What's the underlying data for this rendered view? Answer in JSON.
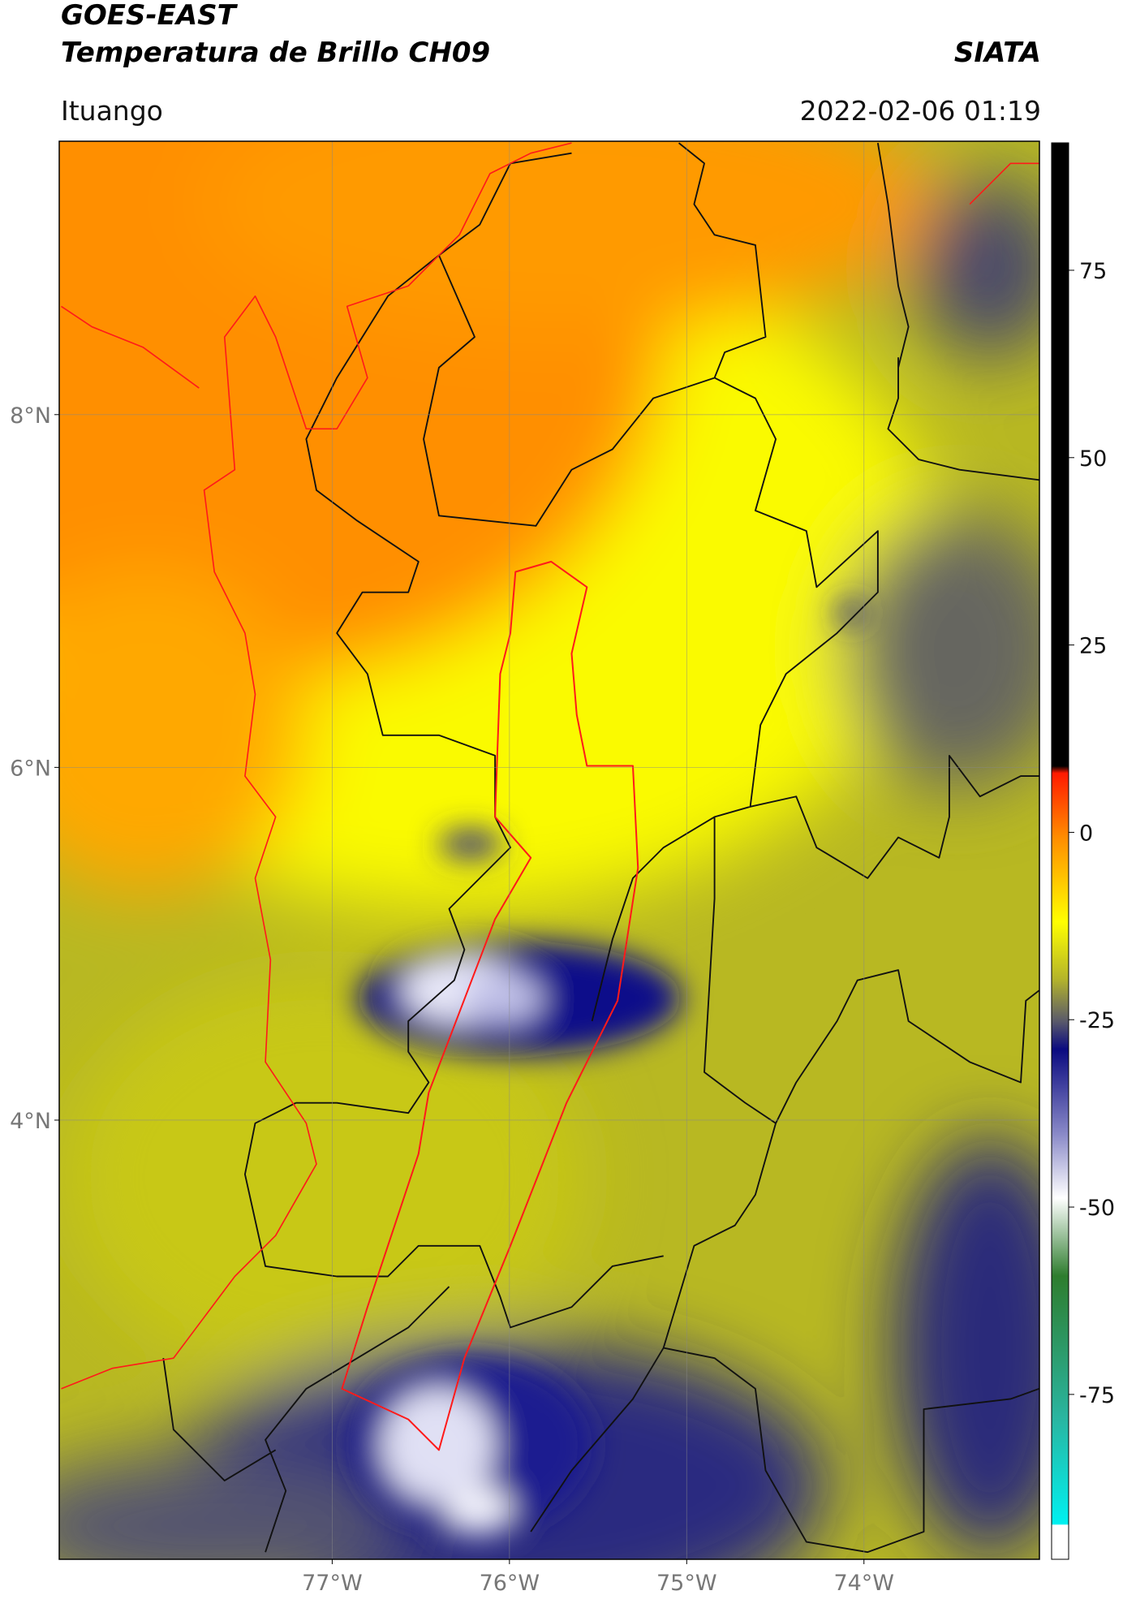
{
  "header": {
    "title_line1": "GOES-EAST",
    "title_line2": "Temperatura de Brillo CH09",
    "org": "SIATA",
    "location": "Ituango",
    "timestamp": "2022-02-06 01:19"
  },
  "map": {
    "xlim": [
      -78.54,
      -73.01
    ],
    "ylim": [
      1.51,
      9.55
    ],
    "xticks": [
      {
        "value": -77,
        "label": "77°W"
      },
      {
        "value": -76,
        "label": "76°W"
      },
      {
        "value": -75,
        "label": "75°W"
      },
      {
        "value": -74,
        "label": "74°W"
      }
    ],
    "yticks": [
      {
        "value": 8,
        "label": "8°N"
      },
      {
        "value": 6,
        "label": "6°N"
      },
      {
        "value": 4,
        "label": "4°N"
      }
    ],
    "grid": true
  },
  "colorbar": {
    "range": [
      -97,
      92
    ],
    "ticks": [
      75,
      50,
      25,
      0,
      -25,
      -50,
      -75
    ]
  }
}
